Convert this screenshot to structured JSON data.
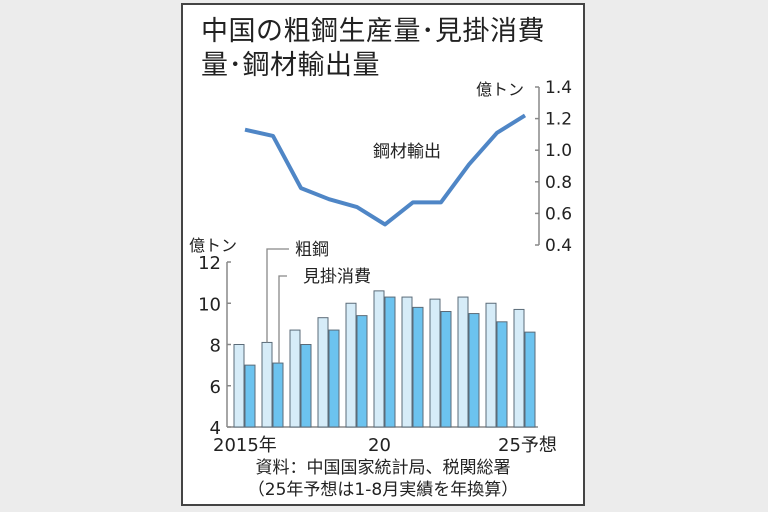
{
  "title": {
    "line1": "中国の粗鋼生産量･見掛消費",
    "line2": "量･鋼材輸出量"
  },
  "line_axis": {
    "unit": "億トン",
    "ticks": [
      "1.4",
      "1.2",
      "1.0",
      "0.8",
      "0.6",
      "0.4"
    ]
  },
  "bar_axis": {
    "unit": "億トン",
    "ticks": [
      "12",
      "10",
      "8",
      "6",
      "4"
    ]
  },
  "labels": {
    "line_series": "鋼材輸出",
    "bar_series_1": "粗鋼",
    "bar_series_2": "見掛消費"
  },
  "x_labels": {
    "start": "2015年",
    "mid": "20",
    "end": "25予想"
  },
  "source": {
    "line1": "資料：中国国家統計局、税関総署",
    "line2": "（25年予想は1-8月実績を年換算）"
  },
  "colors": {
    "line": "#4f86c6",
    "crude": "#d6ecf8",
    "consumption": "#6cc3ef",
    "bar_edge": "#5b6b78",
    "axis": "#888888"
  },
  "chart_data": [
    {
      "type": "line",
      "title": "鋼材輸出",
      "ylabel": "億トン",
      "ylim": [
        0.4,
        1.4
      ],
      "x": [
        2015,
        2016,
        2017,
        2018,
        2019,
        2020,
        2021,
        2022,
        2023,
        2024,
        2025
      ],
      "x_tick_labels": [
        "2015年",
        "20",
        "25予想"
      ],
      "series": [
        {
          "name": "鋼材輸出",
          "values": [
            1.13,
            1.09,
            0.76,
            0.69,
            0.64,
            0.53,
            0.67,
            0.67,
            0.91,
            1.11,
            1.22
          ]
        }
      ],
      "axis_position": "right",
      "grid": false
    },
    {
      "type": "bar",
      "title": "中国の粗鋼生産量･見掛消費量",
      "ylabel": "億トン",
      "ylim": [
        4,
        12
      ],
      "categories": [
        "2015",
        "2016",
        "2017",
        "2018",
        "2019",
        "2020",
        "2021",
        "2022",
        "2023",
        "2024",
        "2025予想"
      ],
      "series": [
        {
          "name": "粗鋼",
          "values": [
            8.0,
            8.1,
            8.7,
            9.3,
            10.0,
            10.6,
            10.3,
            10.2,
            10.3,
            10.0,
            9.7
          ]
        },
        {
          "name": "見掛消費",
          "values": [
            7.0,
            7.1,
            8.0,
            8.7,
            9.4,
            10.3,
            9.8,
            9.6,
            9.5,
            9.1,
            8.6
          ]
        }
      ],
      "legend_position": "inline-top-left",
      "grid": false
    }
  ]
}
